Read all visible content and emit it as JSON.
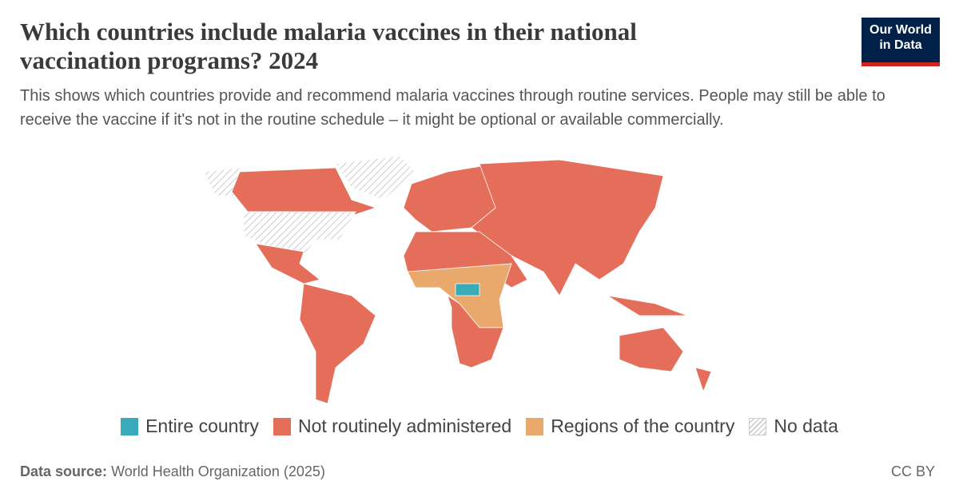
{
  "header": {
    "title": "Which countries include malaria vaccines in their national vaccination programs? 2024",
    "subtitle": "This shows which countries provide and recommend malaria vaccines through routine services. People may still be able to receive the vaccine if it's not in the routine schedule – it might be optional or available commercially."
  },
  "logo": {
    "line1": "Our World",
    "line2": "in Data"
  },
  "legend": [
    {
      "label": "Entire country",
      "color": "#38aaba",
      "hatched": false
    },
    {
      "label": "Not routinely administered",
      "color": "#e56e5a",
      "hatched": false
    },
    {
      "label": "Regions of the country",
      "color": "#e9a96c",
      "hatched": false
    },
    {
      "label": "No data",
      "color": "#cccccc",
      "hatched": true
    }
  ],
  "footer": {
    "source_label": "Data source:",
    "source": "World Health Organization (2025)",
    "license": "CC BY"
  }
}
